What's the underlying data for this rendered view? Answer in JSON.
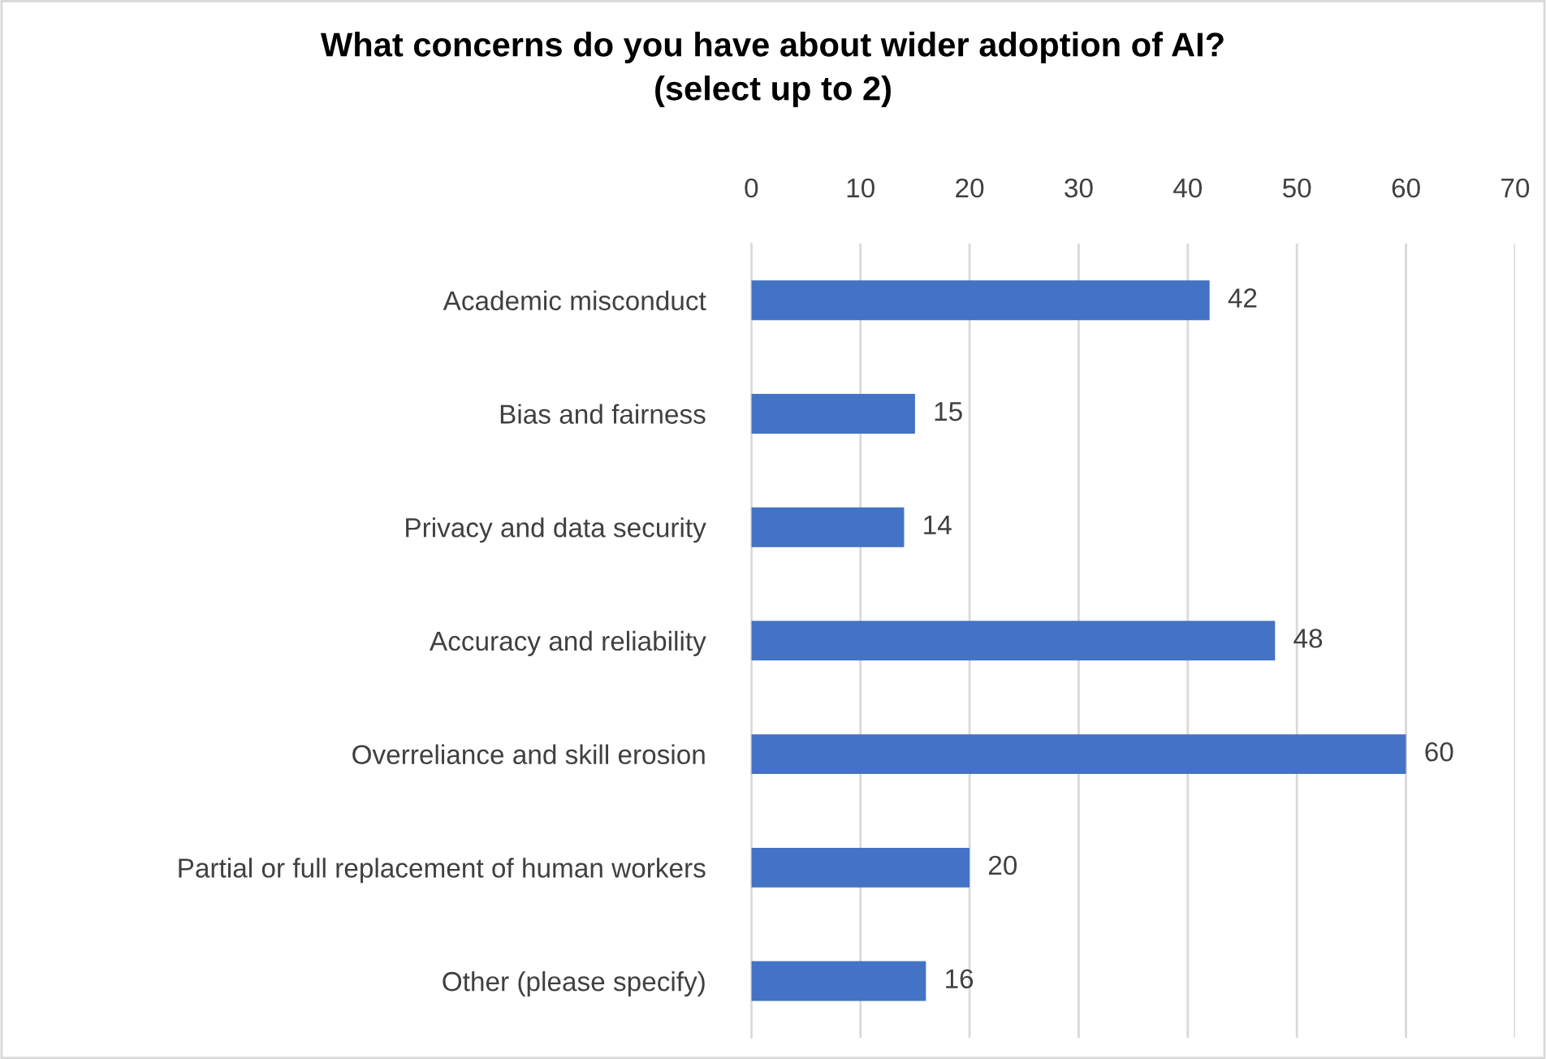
{
  "chart_data": {
    "type": "bar",
    "orientation": "horizontal",
    "title": "What concerns do you have about wider adoption of AI?\n(select up to 2)",
    "categories": [
      "Academic misconduct",
      "Bias and fairness",
      "Privacy and data security",
      "Accuracy and reliability",
      "Overreliance and skill erosion",
      "Partial or full replacement of human workers",
      "Other (please specify)"
    ],
    "values": [
      42,
      15,
      14,
      48,
      60,
      20,
      16
    ],
    "color": "#4472c4",
    "xlim": [
      0,
      70
    ],
    "xticks": [
      0,
      10,
      20,
      30,
      40,
      50,
      60,
      70
    ],
    "grid": "x",
    "data_labels": true
  }
}
